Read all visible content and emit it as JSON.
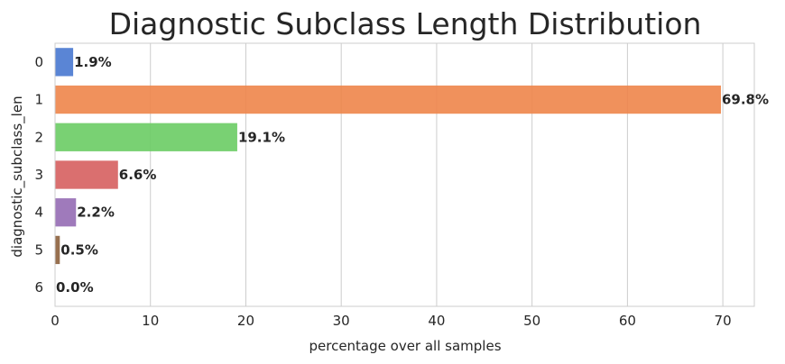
{
  "chart_data": {
    "type": "bar",
    "orientation": "horizontal",
    "title": "Diagnostic Subclass Length Distribution",
    "xlabel": "percentage over all samples",
    "ylabel": "diagnostic_subclass_len",
    "xlim": [
      0,
      73.3
    ],
    "xticks": [
      0,
      10,
      20,
      30,
      40,
      50,
      60,
      70
    ],
    "categories": [
      "0",
      "1",
      "2",
      "3",
      "4",
      "5",
      "6"
    ],
    "values": [
      1.9,
      69.8,
      19.1,
      6.6,
      2.2,
      0.5,
      0.0
    ],
    "data_labels": [
      "1.9%",
      "69.8%",
      "19.1%",
      "6.6%",
      "2.2%",
      "0.5%",
      "0.0%"
    ],
    "colors": [
      "#4878d0",
      "#ee854a",
      "#6acc64",
      "#d65f5f",
      "#956cb4",
      "#8c613c",
      "#dc7ec0"
    ],
    "grid": true
  }
}
